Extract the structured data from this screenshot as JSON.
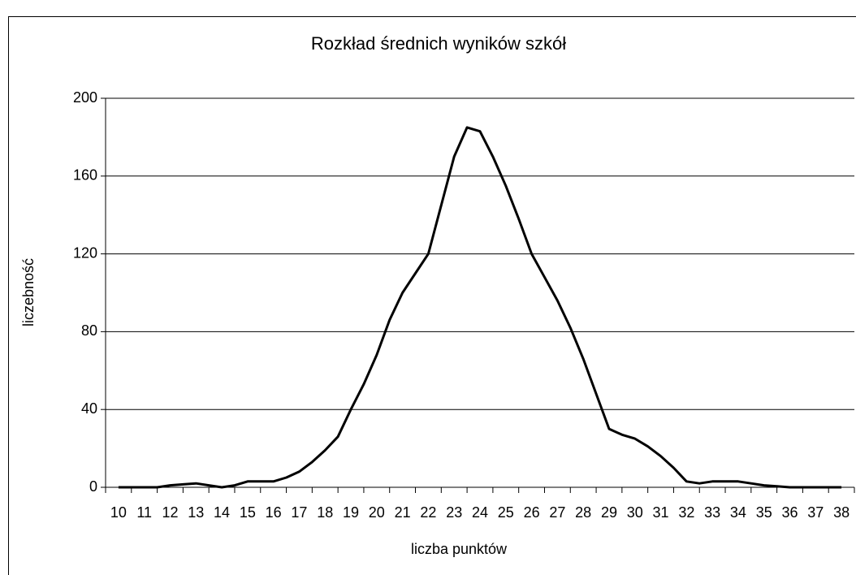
{
  "chart_data": {
    "type": "line",
    "title": "Rozkład średnich wyników szkół",
    "xlabel": "liczba punktów",
    "ylabel": "liczebność",
    "x": [
      10,
      10.5,
      11,
      11.5,
      12,
      12.5,
      13,
      13.5,
      14,
      14.5,
      15,
      15.5,
      16,
      16.5,
      17,
      17.5,
      18,
      18.5,
      19,
      19.5,
      20,
      20.5,
      21,
      21.5,
      22,
      22.5,
      23,
      23.5,
      24,
      24.5,
      25,
      25.5,
      26,
      26.5,
      27,
      27.5,
      28,
      28.5,
      29,
      29.5,
      30,
      30.5,
      31,
      31.5,
      32,
      32.5,
      33,
      33.5,
      34,
      34.5,
      35,
      35.5,
      36,
      36.5,
      37,
      37.5,
      38
    ],
    "series": [
      {
        "name": "liczebność",
        "color": "#000000",
        "values": [
          0,
          0,
          0,
          0,
          1,
          1.5,
          2,
          1,
          0,
          1,
          3,
          3,
          3,
          5,
          8,
          13,
          19,
          26,
          40,
          53,
          68,
          86,
          100,
          110,
          120,
          145,
          170,
          185,
          183,
          170,
          155,
          138,
          120,
          108,
          96,
          82,
          66,
          48,
          30,
          27,
          25,
          21,
          16,
          10,
          3,
          2,
          3,
          3,
          3,
          2,
          1,
          0.5,
          0,
          0,
          0,
          0,
          0
        ]
      }
    ],
    "xlim": [
      9.5,
      38.5
    ],
    "xticks": [
      10,
      11,
      12,
      13,
      14,
      15,
      16,
      17,
      18,
      19,
      20,
      21,
      22,
      23,
      24,
      25,
      26,
      27,
      28,
      29,
      30,
      31,
      32,
      33,
      34,
      35,
      36,
      37,
      38
    ],
    "ylim": [
      0,
      200
    ],
    "yticks": [
      0,
      40,
      80,
      120,
      160,
      200
    ],
    "grid": true
  }
}
